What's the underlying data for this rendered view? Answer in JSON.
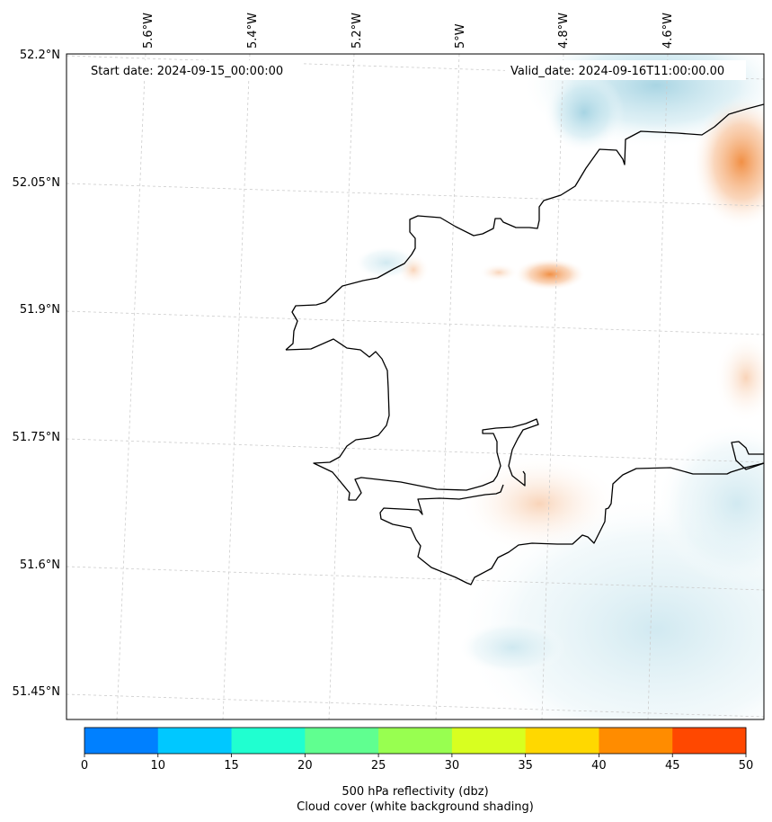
{
  "map": {
    "start_date": "Start date: 2024-09-15_00:00:00",
    "valid_date": "Valid_date: 2024-09-16T11:00:00.00",
    "lon_labels": [
      "5.6°W",
      "5.4°W",
      "5.2°W",
      "5°W",
      "4.8°W",
      "4.6°W"
    ],
    "lat_labels": [
      "52.2°N",
      "52.05°N",
      "51.9°N",
      "51.75°N",
      "51.6°N",
      "51.45°N"
    ]
  },
  "colorbar": {
    "ticks": [
      "0",
      "10",
      "15",
      "20",
      "25",
      "30",
      "35",
      "40",
      "45",
      "50"
    ],
    "colors": [
      "#0080ff",
      "#00c8ff",
      "#20ffd0",
      "#60ff90",
      "#98ff50",
      "#d8ff20",
      "#ffd800",
      "#ff8c00",
      "#ff4800"
    ],
    "label_line1": "500 hPa reflectivity (dbz)",
    "label_line2": "Cloud cover (white background shading)"
  },
  "colors": {
    "cloud_shading": "#b8dde8",
    "warm_shading": "#f5a060",
    "coastline": "#000000",
    "gridline": "#cccccc"
  }
}
